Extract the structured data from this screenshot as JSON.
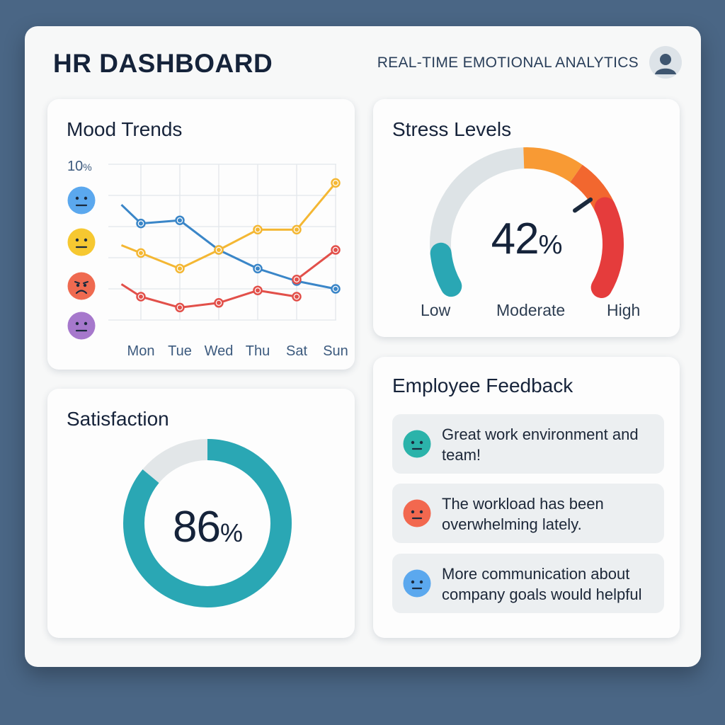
{
  "header": {
    "title": "HR DASHBOARD",
    "subtitle": "REAL-TIME EMOTIONAL ANALYTICS",
    "avatar_icon": "user-avatar-icon"
  },
  "mood_trends": {
    "title": "Mood Trends",
    "y_top_label_num": "10",
    "y_top_label_unit": "%",
    "mood_icons": [
      {
        "icon": "neutral-face-icon",
        "color": "#5ba8ee"
      },
      {
        "icon": "neutral-face-icon",
        "color": "#f6c831"
      },
      {
        "icon": "sad-face-icon",
        "color": "#ef6a50"
      },
      {
        "icon": "neutral-face-icon",
        "color": "#a678cc"
      }
    ]
  },
  "stress": {
    "title": "Stress Levels",
    "value_num": "42",
    "value_unit": "%",
    "value": 42,
    "labels": {
      "low": "Low",
      "moderate": "Moderate",
      "high": "High"
    },
    "colors": {
      "track": "#dde3e6",
      "low": "#2aa7b4",
      "moderate": "#f89a34",
      "elevated": "#f2672f",
      "high": "#e53c3c",
      "needle": "#1b2a3d"
    }
  },
  "satisfaction": {
    "title": "Satisfaction",
    "value_num": "86",
    "value_unit": "%",
    "value": 86,
    "colors": {
      "fill": "#2aa7b4",
      "track": "#e2e6e8"
    }
  },
  "feedback": {
    "title": "Employee Feedback",
    "items": [
      {
        "text": "Great work environment and team!",
        "icon": "neutral-face-icon",
        "color": "#2bb3aa"
      },
      {
        "text": "The workload has been overwhelming lately.",
        "icon": "neutral-face-icon",
        "color": "#f2684f"
      },
      {
        "text": "More communication about company goals would helpful",
        "icon": "neutral-face-icon",
        "color": "#5ba8ee"
      }
    ]
  },
  "chart_data": {
    "type": "line",
    "title": "Mood Trends",
    "categories": [
      "Mon",
      "Tue",
      "Wed",
      "Thu",
      "Sat",
      "Sun"
    ],
    "y_axis_top_label": "10%",
    "ylim": [
      0,
      10
    ],
    "grid": true,
    "series": [
      {
        "color": "#3a86c8",
        "values": [
          {
            "x": 0,
            "y": 7.4
          },
          {
            "x": 0.5,
            "y": 6.2
          },
          {
            "x": 1.5,
            "y": 6.4
          },
          {
            "x": 2.5,
            "y": 4.5
          },
          {
            "x": 3.5,
            "y": 3.3
          },
          {
            "x": 4.5,
            "y": 2.5
          },
          {
            "x": 5.5,
            "y": 2.0
          }
        ]
      },
      {
        "color": "#f4b733",
        "values": [
          {
            "x": 0,
            "y": 4.8
          },
          {
            "x": 0.5,
            "y": 4.3
          },
          {
            "x": 1.5,
            "y": 3.3
          },
          {
            "x": 2.5,
            "y": 4.5
          },
          {
            "x": 3.5,
            "y": 5.8
          },
          {
            "x": 4.5,
            "y": 5.8
          },
          {
            "x": 5.5,
            "y": 8.8
          }
        ]
      },
      {
        "color": "#e2504a",
        "values": [
          {
            "x": 0,
            "y": 2.3
          },
          {
            "x": 0.5,
            "y": 1.5
          },
          {
            "x": 1.5,
            "y": 0.8
          },
          {
            "x": 2.5,
            "y": 1.1
          },
          {
            "x": 3.5,
            "y": 1.9
          },
          {
            "x": 4.5,
            "y": 1.5
          }
        ]
      },
      {
        "color": "#e2504a",
        "values": [
          {
            "x": 4.5,
            "y": 2.6
          },
          {
            "x": 5.5,
            "y": 4.5
          }
        ]
      }
    ]
  }
}
